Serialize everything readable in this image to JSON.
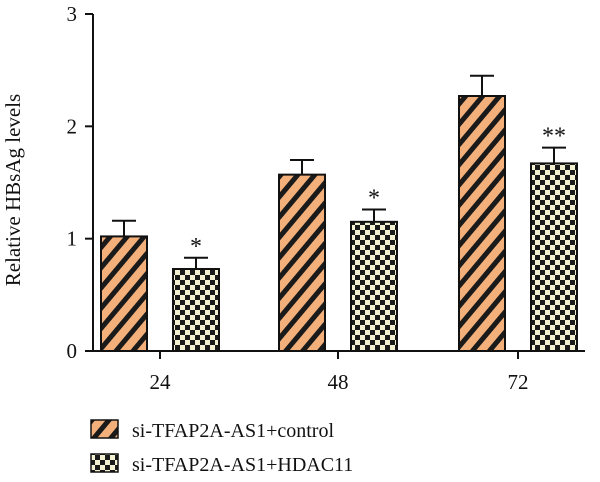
{
  "chart_data": {
    "type": "bar",
    "ylabel": "Relative HBsAg levels",
    "xlabel": "",
    "ylim": [
      0,
      3
    ],
    "yticks": [
      "0",
      "1",
      "2",
      "3"
    ],
    "categories": [
      "24",
      "48",
      "72"
    ],
    "legend_position": "bottom-left",
    "grid": false,
    "series": [
      {
        "name": "si-TFAP2A-AS1+control",
        "pattern": "diagonal-stripes",
        "colors": {
          "fill": "#f4b07a",
          "stripe": "#1a1a1a"
        },
        "values": [
          1.02,
          1.57,
          2.27
        ],
        "errors": [
          0.14,
          0.13,
          0.18
        ],
        "annotations": [
          "",
          "",
          ""
        ]
      },
      {
        "name": "si-TFAP2A-AS1+HDAC11",
        "pattern": "checkerboard",
        "colors": {
          "fill": "#f3f1d2",
          "check": "#1a1a1a"
        },
        "values": [
          0.73,
          1.15,
          1.67
        ],
        "errors": [
          0.1,
          0.11,
          0.14
        ],
        "annotations": [
          "*",
          "*",
          "**"
        ]
      }
    ]
  }
}
